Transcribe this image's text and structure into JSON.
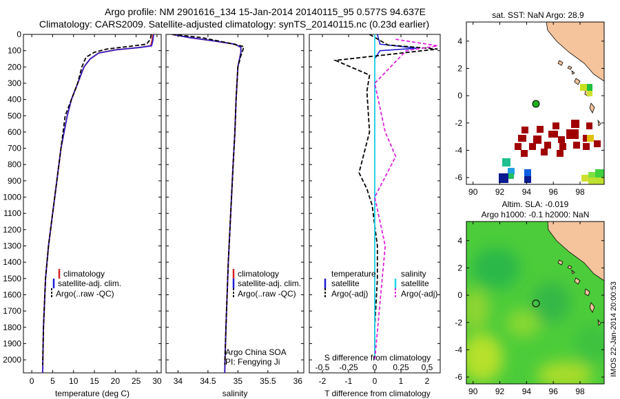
{
  "header": {
    "line1": "Argo profile: NM 2901616_134 15-Jan-2014 20140115_95 0.577S 94.637E",
    "line2": "Climatology: CARS2009. Satellite-adjusted climatology: synTS_20140115.nc (0.23d earlier)"
  },
  "colors": {
    "climatology": "#d62020",
    "satellite": "#1f1fd6",
    "argo": "#000000",
    "sal_satellite": "#22d8e8",
    "sal_argo": "#e020e0",
    "land": "#f5c39c",
    "sst_dark_red": "#a00000"
  },
  "depth_axis": {
    "ticks": [
      "0",
      "100",
      "200",
      "300",
      "400",
      "500",
      "600",
      "700",
      "800",
      "900",
      "1000",
      "1100",
      "1200",
      "1300",
      "1400",
      "1500",
      "1600",
      "1700",
      "1800",
      "1900",
      "2000"
    ],
    "ylim": [
      0,
      2080
    ]
  },
  "chart_data": [
    {
      "type": "line",
      "panel": "temperature",
      "xlabel": "temperature (deg C)",
      "xlim": [
        -2,
        31
      ],
      "xticks": [
        "0",
        "5",
        "10",
        "15",
        "20",
        "25",
        "30"
      ],
      "legend": [
        "climatology",
        "satellite-adj. clim.",
        "Argo(..raw -QC)"
      ],
      "series": [
        {
          "name": "climatology",
          "x": [
            29.0,
            28.8,
            28.5,
            26.0,
            20.0,
            16.0,
            14.0,
            12.5,
            11.0,
            9.5,
            8.5,
            7.0,
            6.0,
            5.0,
            4.0,
            3.3,
            2.8,
            2.6
          ],
          "depth": [
            0,
            40,
            70,
            80,
            95,
            115,
            150,
            200,
            300,
            400,
            500,
            700,
            900,
            1100,
            1300,
            1500,
            1800,
            2080
          ]
        },
        {
          "name": "satellite",
          "x": [
            29.2,
            29.0,
            28.7,
            26.0,
            20.0,
            16.0,
            14.0,
            12.5,
            11.0,
            9.5,
            8.5,
            7.0,
            6.0,
            5.0,
            4.0,
            3.3,
            2.8,
            2.6
          ],
          "depth": [
            0,
            40,
            70,
            80,
            95,
            115,
            150,
            200,
            300,
            400,
            500,
            700,
            900,
            1100,
            1300,
            1500,
            1800,
            2080
          ]
        },
        {
          "name": "Argo",
          "x": [
            28.6,
            28.4,
            27.5,
            23.0,
            18.0,
            15.0,
            13.0,
            12.0,
            11.0,
            9.5,
            8.0,
            7.0,
            6.0,
            5.0,
            4.0,
            3.3,
            2.8,
            2.6
          ],
          "depth": [
            0,
            30,
            60,
            75,
            90,
            110,
            140,
            200,
            300,
            400,
            500,
            700,
            900,
            1100,
            1300,
            1500,
            1800,
            2030
          ]
        }
      ]
    },
    {
      "type": "line",
      "panel": "salinity",
      "xlabel": "salinity",
      "xlim": [
        33.8,
        36.1
      ],
      "xticks": [
        "34",
        "34.5",
        "35",
        "35.5",
        "36"
      ],
      "legend": [
        "climatology",
        "satellite-adj. clim.",
        "Argo(..raw -QC)"
      ],
      "annotation": [
        "Argo China SOA",
        "PI: Fengying Ji"
      ],
      "series": [
        {
          "name": "climatology",
          "x": [
            33.9,
            34.2,
            34.6,
            34.95,
            35.05,
            35.05,
            35.0,
            34.97,
            34.95,
            34.92,
            34.88,
            34.84,
            34.8,
            34.78
          ],
          "depth": [
            0,
            20,
            40,
            60,
            80,
            110,
            200,
            400,
            600,
            800,
            1100,
            1400,
            1800,
            2080
          ]
        },
        {
          "name": "satellite",
          "x": [
            33.9,
            34.2,
            34.6,
            34.95,
            35.05,
            35.05,
            35.0,
            34.97,
            34.95,
            34.92,
            34.88,
            34.84,
            34.8,
            34.78
          ],
          "depth": [
            0,
            20,
            40,
            60,
            80,
            110,
            200,
            400,
            600,
            800,
            1100,
            1400,
            1800,
            2080
          ]
        },
        {
          "name": "Argo",
          "x": [
            33.9,
            34.4,
            34.8,
            35.1,
            35.08,
            35.05,
            35.0,
            34.97,
            34.95,
            34.92,
            34.88,
            34.84,
            34.8,
            34.78
          ],
          "depth": [
            0,
            20,
            50,
            75,
            100,
            130,
            200,
            400,
            600,
            800,
            1100,
            1400,
            1800,
            2030
          ]
        }
      ]
    },
    {
      "type": "line",
      "panel": "difference",
      "xlabel": "T difference from climatology",
      "x2label": "S difference from climatology",
      "xlim": [
        -2.5,
        2.5
      ],
      "xticks": [
        "-2",
        "-1",
        "0",
        "1",
        "2"
      ],
      "x2ticks": [
        "-0.5",
        "-0.25",
        "0",
        "0.25",
        "0.5"
      ],
      "legend_titles": [
        "temperature",
        "salinity"
      ],
      "legend_temp": [
        "satellite",
        "Argo(-adj)"
      ],
      "legend_sal": [
        "satellite",
        "Argo(-adj)"
      ],
      "series": [
        {
          "name": "T satellite",
          "x": [
            0.1,
            0.2,
            1.6,
            0.2,
            0.0,
            0.0,
            0.0,
            0.0
          ],
          "depth": [
            0,
            60,
            85,
            100,
            150,
            500,
            1000,
            2000
          ]
        },
        {
          "name": "T Argo",
          "x": [
            -0.2,
            0.5,
            2.4,
            -1.5,
            -0.2,
            -0.3,
            -0.2,
            -0.6,
            -0.3,
            -0.1,
            0.1,
            0.1,
            0.0,
            0.0
          ],
          "depth": [
            0,
            65,
            90,
            160,
            250,
            350,
            600,
            850,
            950,
            1050,
            1300,
            1500,
            1800,
            2000
          ]
        },
        {
          "name": "S satellite",
          "x": [
            0.0,
            0.0,
            0.0,
            0.0
          ],
          "depth": [
            0,
            100,
            1000,
            2000
          ]
        },
        {
          "name": "S Argo",
          "x": [
            0.2,
            0.6,
            0.3,
            0.0,
            0.1,
            0.2,
            0.0,
            0.1,
            0.0
          ],
          "depth": [
            30,
            70,
            100,
            300,
            600,
            750,
            1000,
            1300,
            2000
          ]
        }
      ]
    }
  ],
  "sst_map": {
    "title": "sat. SST: NaN Argo: 28.9",
    "xticks": [
      "90",
      "92",
      "94",
      "96",
      "98"
    ],
    "yticks": [
      "4",
      "2",
      "0",
      "-2",
      "-4",
      "-6"
    ]
  },
  "sla_map": {
    "title_line1": "Altim. SLA: -0.019",
    "title_line2": "Argo h1000: -0.1 h2000: NaN",
    "xticks": [
      "90",
      "92",
      "94",
      "96",
      "98"
    ],
    "yticks": [
      "4",
      "2",
      "0",
      "-2",
      "-4",
      "-6"
    ]
  },
  "footer": "IMOS 22-Jan-2014 20:00:53"
}
